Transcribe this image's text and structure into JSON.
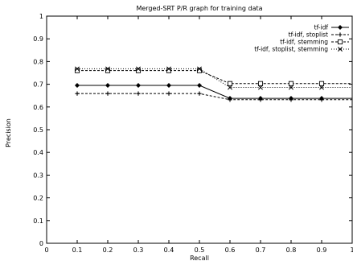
{
  "chart_data": {
    "type": "line",
    "title": "Merged-SRT P/R graph for training data",
    "xlabel": "Recall",
    "ylabel": "Precision",
    "xlim": [
      0,
      1
    ],
    "ylim": [
      0,
      1
    ],
    "x_ticks": [
      "0",
      "0.1",
      "0.2",
      "0.3",
      "0.4",
      "0.5",
      "0.6",
      "0.7",
      "0.8",
      "0.9",
      "1"
    ],
    "y_ticks": [
      "0",
      "0.1",
      "0.2",
      "0.3",
      "0.4",
      "0.5",
      "0.6",
      "0.7",
      "0.8",
      "0.9",
      "1"
    ],
    "legend_position": "top-right",
    "grid": false,
    "x": [
      0.1,
      0.2,
      0.3,
      0.4,
      0.5,
      0.6,
      0.7,
      0.8,
      0.9
    ],
    "series": [
      {
        "name": "tf-idf",
        "values": [
          0.695,
          0.695,
          0.695,
          0.695,
          0.695,
          0.638,
          0.638,
          0.638,
          0.638
        ],
        "marker": "diamond",
        "dash": "solid",
        "color": "#000000"
      },
      {
        "name": "tf-idf, stoplist",
        "values": [
          0.659,
          0.659,
          0.659,
          0.659,
          0.659,
          0.632,
          0.632,
          0.632,
          0.632
        ],
        "marker": "plus",
        "dash": "dashed",
        "color": "#000000"
      },
      {
        "name": "tf-idf, stemming",
        "values": [
          0.76,
          0.76,
          0.76,
          0.76,
          0.76,
          0.703,
          0.703,
          0.703,
          0.703
        ],
        "marker": "square",
        "dash": "dashed",
        "color": "#000000"
      },
      {
        "name": "tf-idf, stoplist, stemming",
        "values": [
          0.768,
          0.768,
          0.768,
          0.768,
          0.768,
          0.686,
          0.686,
          0.686,
          0.686
        ],
        "marker": "cross",
        "dash": "dotted",
        "color": "#000000"
      }
    ]
  }
}
